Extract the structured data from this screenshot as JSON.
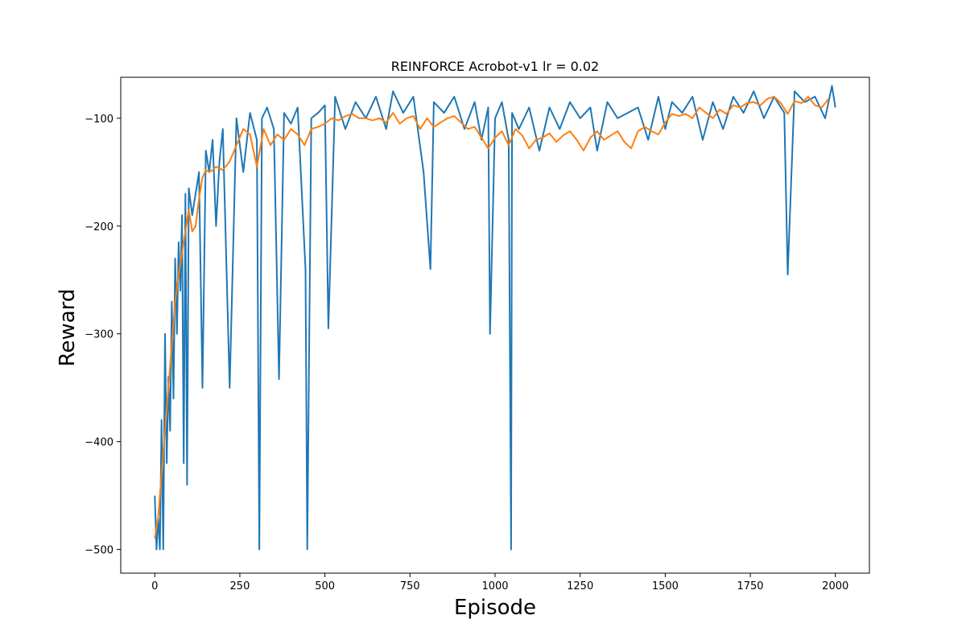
{
  "chart_data": {
    "type": "line",
    "title": "REINFORCE Acrobot-v1 lr = 0.02",
    "xlabel": "Episode",
    "ylabel": "Reward",
    "xlim": [
      -100,
      2100
    ],
    "ylim": [
      -522,
      -62
    ],
    "xticks": [
      0,
      250,
      500,
      750,
      1000,
      1250,
      1500,
      1750,
      2000
    ],
    "xtick_labels": [
      "0",
      "250",
      "500",
      "750",
      "1000",
      "1250",
      "1500",
      "1750",
      "2000"
    ],
    "yticks": [
      -500,
      -400,
      -300,
      -200,
      -100
    ],
    "ytick_labels": [
      "−500",
      "−400",
      "−300",
      "−200",
      "−100"
    ],
    "grid": false,
    "legend": "none",
    "colors": {
      "raw": "#1f77b4",
      "smoothed": "#ff7f0e"
    },
    "series": [
      {
        "role": "episode reward",
        "x": [
          0,
          5,
          10,
          15,
          20,
          25,
          30,
          35,
          40,
          45,
          50,
          55,
          60,
          65,
          70,
          75,
          80,
          85,
          90,
          95,
          100,
          110,
          120,
          130,
          140,
          150,
          160,
          170,
          180,
          190,
          200,
          220,
          240,
          260,
          280,
          300,
          307,
          315,
          330,
          350,
          365,
          380,
          400,
          420,
          443,
          448,
          460,
          480,
          500,
          510,
          530,
          560,
          590,
          620,
          650,
          680,
          700,
          730,
          760,
          790,
          810,
          820,
          850,
          880,
          910,
          940,
          960,
          980,
          985,
          1000,
          1020,
          1040,
          1047,
          1050,
          1070,
          1100,
          1130,
          1160,
          1190,
          1220,
          1250,
          1280,
          1300,
          1330,
          1360,
          1390,
          1420,
          1450,
          1480,
          1500,
          1520,
          1550,
          1580,
          1610,
          1640,
          1670,
          1700,
          1730,
          1760,
          1790,
          1820,
          1850,
          1860,
          1880,
          1910,
          1940,
          1970,
          1990,
          2000
        ],
        "values": [
          -450,
          -500,
          -470,
          -500,
          -380,
          -500,
          -300,
          -420,
          -340,
          -390,
          -270,
          -360,
          -230,
          -300,
          -215,
          -260,
          -190,
          -420,
          -170,
          -440,
          -165,
          -190,
          -170,
          -150,
          -350,
          -130,
          -150,
          -120,
          -200,
          -140,
          -110,
          -350,
          -100,
          -150,
          -95,
          -120,
          -500,
          -100,
          -90,
          -110,
          -342,
          -95,
          -105,
          -90,
          -240,
          -500,
          -100,
          -95,
          -88,
          -295,
          -80,
          -110,
          -85,
          -100,
          -80,
          -110,
          -75,
          -95,
          -80,
          -150,
          -240,
          -85,
          -95,
          -80,
          -110,
          -85,
          -120,
          -90,
          -300,
          -100,
          -85,
          -120,
          -500,
          -95,
          -110,
          -90,
          -130,
          -90,
          -110,
          -85,
          -100,
          -90,
          -130,
          -85,
          -100,
          -95,
          -90,
          -120,
          -80,
          -110,
          -85,
          -95,
          -80,
          -120,
          -85,
          -110,
          -80,
          -95,
          -75,
          -100,
          -80,
          -95,
          -245,
          -75,
          -85,
          -80,
          -100,
          -70,
          -90
        ]
      },
      {
        "role": "moving average",
        "x": [
          0,
          10,
          20,
          30,
          40,
          50,
          60,
          70,
          80,
          90,
          100,
          110,
          120,
          130,
          140,
          150,
          160,
          170,
          180,
          200,
          220,
          240,
          260,
          280,
          300,
          320,
          340,
          360,
          380,
          400,
          420,
          440,
          460,
          480,
          500,
          520,
          540,
          560,
          580,
          600,
          620,
          640,
          660,
          680,
          700,
          720,
          740,
          760,
          780,
          800,
          820,
          840,
          860,
          880,
          900,
          920,
          940,
          960,
          980,
          1000,
          1020,
          1040,
          1060,
          1080,
          1100,
          1120,
          1140,
          1160,
          1180,
          1200,
          1220,
          1240,
          1260,
          1280,
          1300,
          1320,
          1340,
          1360,
          1380,
          1400,
          1420,
          1440,
          1460,
          1480,
          1500,
          1520,
          1540,
          1560,
          1580,
          1600,
          1620,
          1640,
          1660,
          1680,
          1700,
          1720,
          1740,
          1760,
          1780,
          1800,
          1820,
          1840,
          1860,
          1880,
          1900,
          1920,
          1940,
          1960,
          1980
        ],
        "values": [
          -490,
          -470,
          -430,
          -390,
          -350,
          -310,
          -270,
          -245,
          -225,
          -205,
          -185,
          -205,
          -200,
          -175,
          -155,
          -148,
          -150,
          -148,
          -145,
          -148,
          -140,
          -125,
          -110,
          -115,
          -145,
          -110,
          -125,
          -115,
          -120,
          -110,
          -115,
          -125,
          -110,
          -108,
          -105,
          -100,
          -102,
          -98,
          -96,
          -100,
          -100,
          -102,
          -100,
          -104,
          -95,
          -105,
          -100,
          -98,
          -110,
          -100,
          -108,
          -104,
          -100,
          -98,
          -104,
          -110,
          -108,
          -118,
          -128,
          -118,
          -112,
          -125,
          -110,
          -116,
          -128,
          -120,
          -118,
          -114,
          -122,
          -116,
          -112,
          -120,
          -130,
          -118,
          -112,
          -120,
          -116,
          -112,
          -122,
          -128,
          -112,
          -108,
          -112,
          -115,
          -104,
          -96,
          -98,
          -96,
          -100,
          -90,
          -95,
          -100,
          -92,
          -96,
          -88,
          -90,
          -86,
          -85,
          -88,
          -82,
          -80,
          -86,
          -96,
          -84,
          -86,
          -80,
          -88,
          -90,
          -82
        ]
      }
    ]
  }
}
